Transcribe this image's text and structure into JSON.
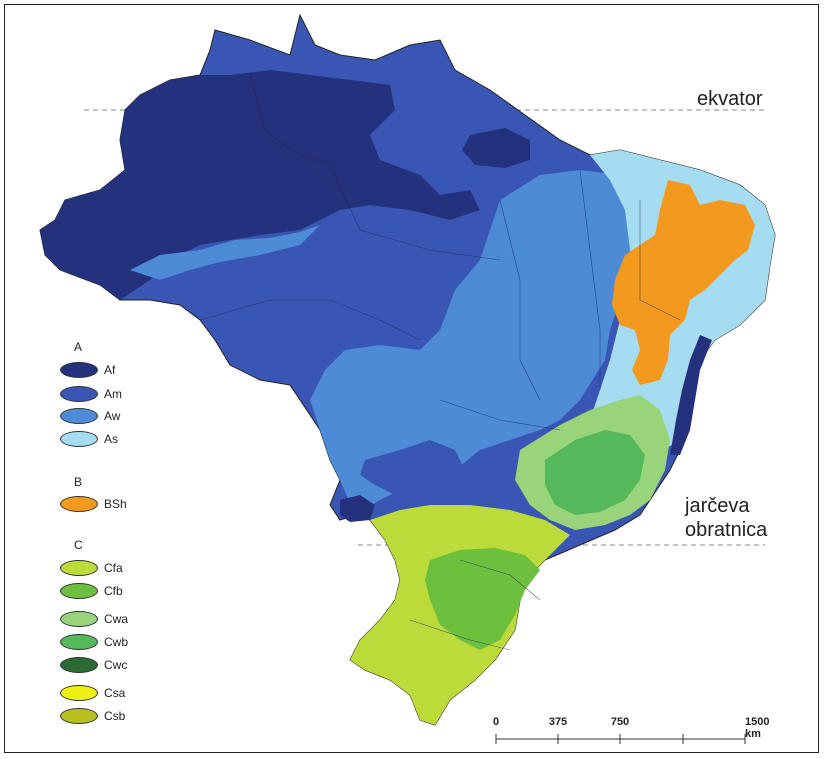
{
  "labels": {
    "equator": "ekvator",
    "tropic_line1": "jarčeva",
    "tropic_line2": "obratnica"
  },
  "legend": {
    "groups": [
      {
        "head": "A",
        "items": [
          {
            "code": "Af",
            "color": "#24327e"
          },
          {
            "code": "Am",
            "color": "#3a56b4"
          },
          {
            "code": "Aw",
            "color": "#4d8bd6"
          },
          {
            "code": "As",
            "color": "#a6dcf2"
          }
        ]
      },
      {
        "head": "B",
        "items": [
          {
            "code": "BSh",
            "color": "#f39a1e"
          }
        ]
      },
      {
        "head": "C",
        "items": [
          {
            "code": "Cfa",
            "color": "#bcdb3a"
          },
          {
            "code": "Cfb",
            "color": "#6cc03e"
          },
          {
            "code": "Cwa",
            "color": "#98d47a"
          },
          {
            "code": "Cwb",
            "color": "#55b85a"
          },
          {
            "code": "Cwc",
            "color": "#2b6a35"
          },
          {
            "code": "Csa",
            "color": "#eef013"
          },
          {
            "code": "Csb",
            "color": "#b8bf20"
          }
        ]
      }
    ]
  },
  "scale": {
    "ticks": [
      "0",
      "375",
      "750",
      "1500 km"
    ]
  }
}
